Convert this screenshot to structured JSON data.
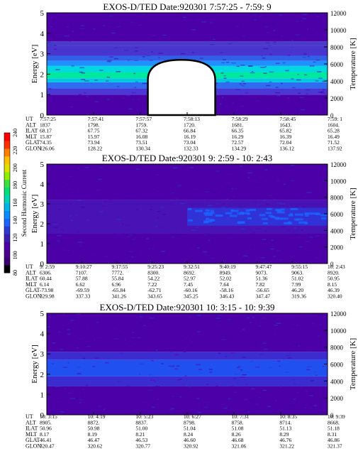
{
  "colorbar": {
    "label": "Second Harmonic Current",
    "ticks": [
      "80",
      "100",
      "120",
      "140",
      "160",
      "180",
      "200",
      "220",
      "240"
    ],
    "colors": [
      "#000000",
      "#3a0070",
      "#4b0090",
      "#4c00a8",
      "#3c1fb0",
      "#2b3ad0",
      "#1a64ff",
      "#0a8cff",
      "#00b4e6",
      "#00d4b4",
      "#00e07a",
      "#3ce03c",
      "#8cf000",
      "#e0e000",
      "#ffc000",
      "#ff8000",
      "#ff3000",
      "#ff0000"
    ]
  },
  "chart_data": [
    {
      "type": "heatmap",
      "title": "EXOS-D/TED   Date:920301  7:57:25 - 7:59: 9",
      "ylabel": "Energy [eV]",
      "ylabel_right": "Temperature [K]",
      "ylim": [
        0,
        5
      ],
      "y_ticks": [
        "0",
        "1",
        "2",
        "3",
        "4",
        "5"
      ],
      "ylim_right": [
        0,
        12000
      ],
      "right_ticks": [
        "0",
        "2000",
        "4000",
        "6000",
        "8000",
        "10000",
        "12000"
      ],
      "bands": [
        {
          "e0": 0.0,
          "e1": 1.0,
          "color": "#4c00a8"
        },
        {
          "e0": 1.0,
          "e1": 1.3,
          "color": "#4b36d6"
        },
        {
          "e0": 1.3,
          "e1": 1.6,
          "color": "#2f6cf0"
        },
        {
          "e0": 1.6,
          "e1": 1.8,
          "color": "#00c8e0"
        },
        {
          "e0": 1.8,
          "e1": 2.1,
          "color": "#00e8a0"
        },
        {
          "e0": 2.1,
          "e1": 2.4,
          "color": "#00d8e0"
        },
        {
          "e0": 2.4,
          "e1": 2.65,
          "color": "#2090ff"
        },
        {
          "e0": 2.65,
          "e1": 2.9,
          "color": "#3060e8"
        },
        {
          "e0": 2.9,
          "e1": 3.4,
          "color": "#4a34d0"
        },
        {
          "e0": 3.4,
          "e1": 3.6,
          "color": "#4a3ac8"
        },
        {
          "e0": 3.6,
          "e1": 5.0,
          "color": "#4c00a8"
        }
      ],
      "blank_region": {
        "t0": 0.36,
        "t1": 0.6,
        "top_energy": 2.7
      },
      "labels": [
        "UT",
        "ALT",
        "ILAT",
        "MLT",
        "GLAT",
        "GLON"
      ],
      "columns": [
        [
          "7:57:25",
          "1837",
          "68.17",
          "15.87",
          "74.35",
          "126.06"
        ],
        [
          "7:57:41",
          "1798.",
          "67.75",
          "15.97",
          "73.94",
          "128.22"
        ],
        [
          "7:57:57",
          "1759.",
          "67.32",
          "16.08",
          "73.51",
          "130.34"
        ],
        [
          "7:58:13",
          "1720.",
          "66.84",
          "16.19",
          "73.04",
          "132.33"
        ],
        [
          "7:58:29",
          "1681.",
          "66.35",
          "16.29",
          "72.57",
          "134.29"
        ],
        [
          "7:58:45",
          "1643.",
          "65.82",
          "16.39",
          "72.04",
          "136.12"
        ],
        [
          "7:59: 1",
          "1604.",
          "65.28",
          "16.49",
          "71.52",
          "137.92"
        ]
      ]
    },
    {
      "type": "heatmap",
      "title": "EXOS-D/TED   Date:920301   9: 2:59 - 10: 2:43",
      "ylabel": "Energy [eV]",
      "ylabel_right": "Temperature [K]",
      "ylim": [
        0,
        5
      ],
      "y_ticks": [
        "0",
        "1",
        "2",
        "3",
        "4",
        "5"
      ],
      "ylim_right": [
        0,
        12000
      ],
      "right_ticks": [
        "0",
        "2000",
        "4000",
        "6000",
        "8000",
        "10000",
        "12000"
      ],
      "bands": [
        {
          "e0": 0.0,
          "e1": 1.5,
          "color": "#4c00a8"
        },
        {
          "e0": 1.5,
          "e1": 3.2,
          "color": "#4812b4"
        },
        {
          "e0": 3.2,
          "e1": 5.0,
          "color": "#4c00a8"
        }
      ],
      "enhancement": {
        "t0": 0.5,
        "e_lo": 1.9,
        "e_hi": 2.8,
        "color": "#2a3ee0"
      },
      "labels": [
        "UT",
        "ALT",
        "ILAT",
        "MLT",
        "GLAT",
        "GLON"
      ],
      "columns": [
        [
          "9: 2:59",
          "6306.",
          "60.44",
          "6.14",
          "-73.98",
          "329.98"
        ],
        [
          "9:10:27",
          "7107.",
          "57.88",
          "6.62",
          "-69.59",
          "337.33"
        ],
        [
          "9:17:55",
          "7772.",
          "55.84",
          "6.96",
          "-65.84",
          "341.26"
        ],
        [
          "9:25:23",
          "8300.",
          "54.22",
          "7.22",
          "-62.71",
          "343.65"
        ],
        [
          "9:32:51",
          "8692.",
          "52.97",
          "7.45",
          "-60.16",
          "345.25"
        ],
        [
          "9:40:19",
          "8949.",
          "52.02",
          "7.64",
          "-58.16",
          "346.43"
        ],
        [
          "9:47:47",
          "9073.",
          "51.36",
          "7.82",
          "-56.65",
          "347.47"
        ],
        [
          "9:55:15",
          "9063.",
          "51.02",
          "7.99",
          "46.20",
          "319.36"
        ],
        [
          "10: 2:43",
          "8920.",
          "50.95",
          "8.15",
          "46.39",
          "320.40"
        ]
      ]
    },
    {
      "type": "heatmap",
      "title": "EXOS-D/TED   Date:920301   10: 3:15 - 10: 9:39",
      "ylabel": "Energy [eV]",
      "ylabel_right": "Temperature [K]",
      "ylim": [
        0,
        5
      ],
      "y_ticks": [
        "0",
        "1",
        "2",
        "3",
        "4",
        "5"
      ],
      "ylim_right": [
        0,
        12000
      ],
      "right_ticks": [
        "0",
        "2000",
        "4000",
        "6000",
        "8000",
        "10000",
        "12000"
      ],
      "bands": [
        {
          "e0": 0.0,
          "e1": 1.4,
          "color": "#4c00a8"
        },
        {
          "e0": 1.4,
          "e1": 1.9,
          "color": "#3b2cd0"
        },
        {
          "e0": 1.9,
          "e1": 2.7,
          "color": "#2050f0"
        },
        {
          "e0": 2.7,
          "e1": 3.1,
          "color": "#3b2cd0"
        },
        {
          "e0": 3.1,
          "e1": 5.0,
          "color": "#4c00a8"
        }
      ],
      "labels": [
        "UT",
        "ALT",
        "ILAT",
        "MLT",
        "GLAT",
        "GLON"
      ],
      "columns": [
        [
          "10: 3:15",
          "8905.",
          "50.96",
          "8.17",
          "46.41",
          "320.47"
        ],
        [
          "10: 4:19",
          "8872.",
          "50.98",
          "8.19",
          "46.47",
          "320.62"
        ],
        [
          "10: 5:23",
          "8837.",
          "51.00",
          "8.21",
          "46.53",
          "320.77"
        ],
        [
          "10: 6:27",
          "8798.",
          "51.04",
          "8.24",
          "46.60",
          "320.92"
        ],
        [
          "10: 7:31",
          "8758.",
          "51.08",
          "8.26",
          "46.68",
          "321.06"
        ],
        [
          "10: 8:35",
          "8714.",
          "51.13",
          "8.29",
          "46.76",
          "321.22"
        ],
        [
          "10: 9:39",
          "8668.",
          "51.18",
          "8.31",
          "46.86",
          "321.37"
        ]
      ]
    }
  ]
}
